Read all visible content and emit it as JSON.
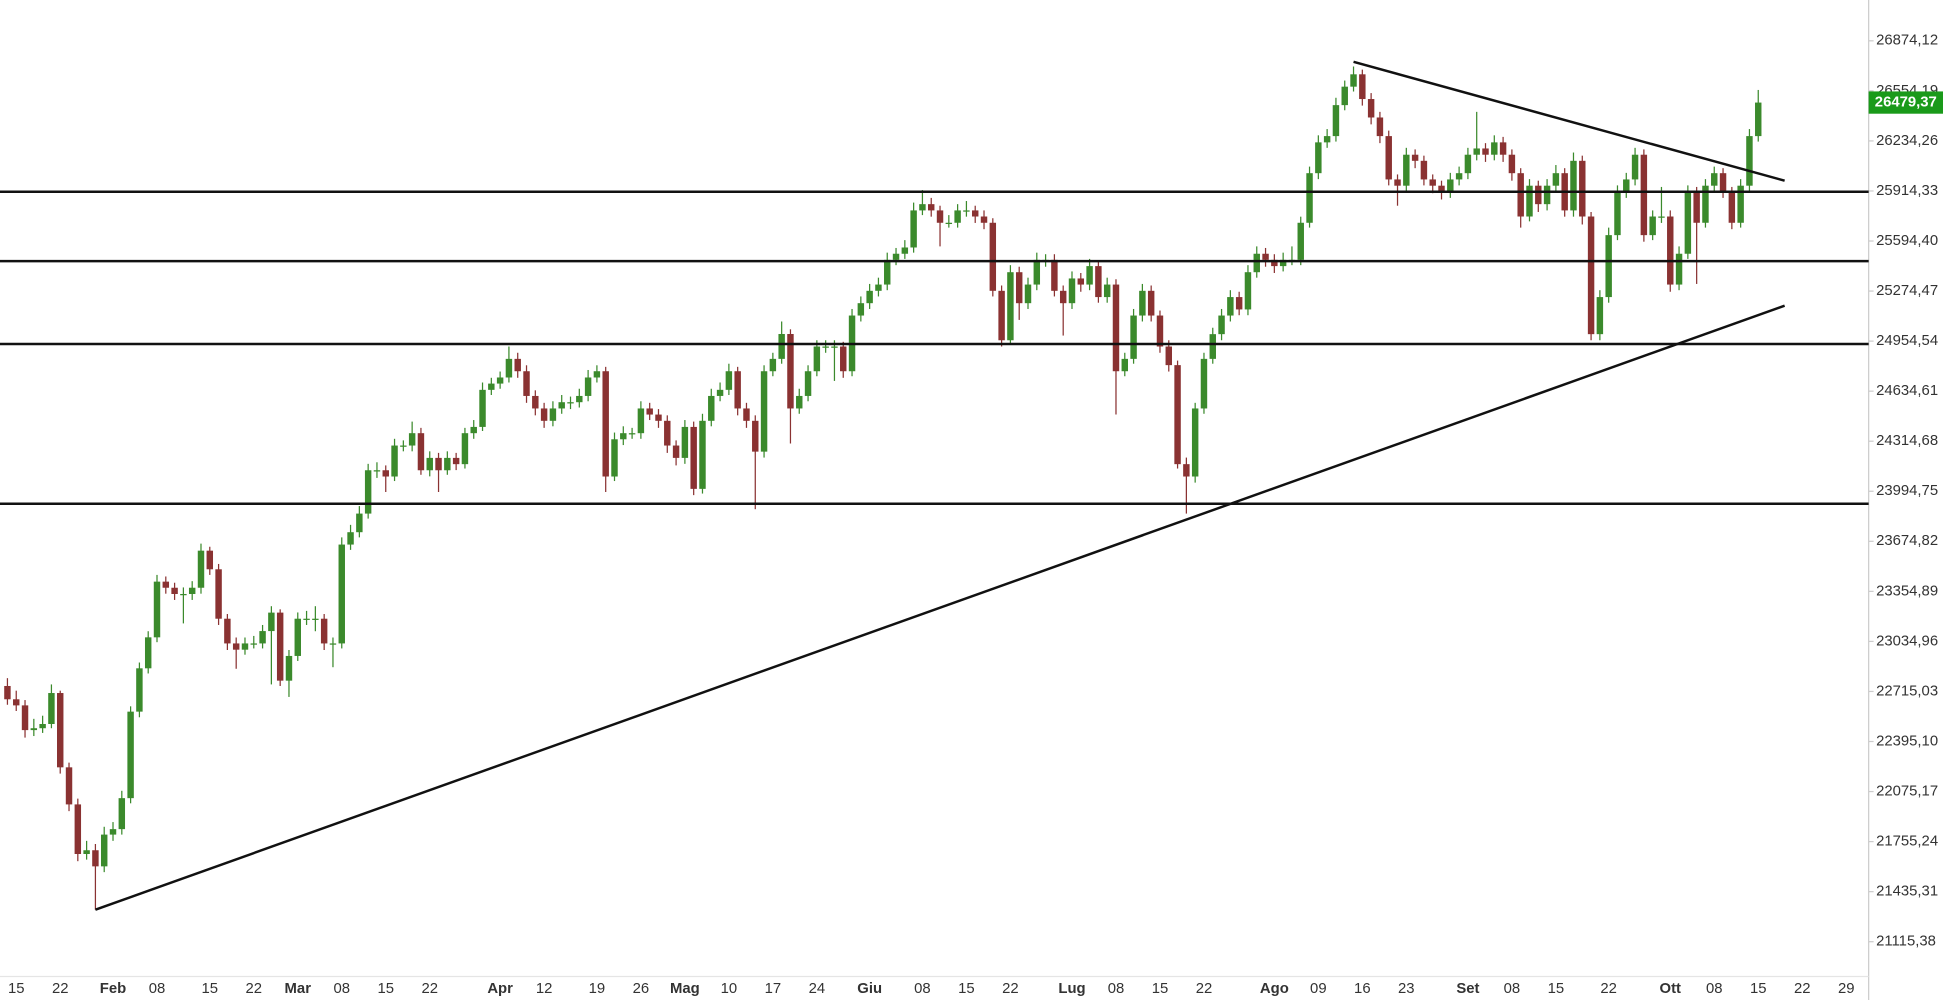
{
  "chart_data": {
    "type": "candlestick",
    "categories": [
      null,
      "15",
      null,
      null,
      null,
      null,
      "22",
      null,
      null,
      null,
      null,
      null,
      "Feb",
      null,
      null,
      null,
      null,
      "08",
      null,
      null,
      null,
      null,
      null,
      "15",
      null,
      null,
      null,
      null,
      "22",
      null,
      null,
      null,
      null,
      "Mar",
      null,
      null,
      null,
      null,
      "08",
      null,
      null,
      null,
      null,
      "15",
      null,
      null,
      null,
      null,
      "22",
      null,
      null,
      null,
      null,
      null,
      null,
      null,
      "Apr",
      null,
      null,
      null,
      null,
      "12",
      null,
      null,
      null,
      null,
      null,
      "19",
      null,
      null,
      null,
      null,
      "26",
      null,
      null,
      null,
      null,
      "Mag",
      null,
      null,
      null,
      null,
      "10",
      null,
      null,
      null,
      null,
      "17",
      null,
      null,
      null,
      null,
      "24",
      null,
      null,
      null,
      null,
      null,
      "Giu",
      null,
      null,
      null,
      null,
      null,
      "08",
      null,
      null,
      null,
      null,
      "15",
      null,
      null,
      null,
      null,
      "22",
      null,
      null,
      null,
      null,
      null,
      null,
      "Lug",
      null,
      null,
      null,
      null,
      "08",
      null,
      null,
      null,
      null,
      "15",
      null,
      null,
      null,
      null,
      "22",
      null,
      null,
      null,
      null,
      null,
      null,
      null,
      "Ago",
      null,
      null,
      null,
      null,
      "09",
      null,
      null,
      null,
      null,
      "16",
      null,
      null,
      null,
      null,
      "23",
      null,
      null,
      null,
      null,
      null,
      null,
      "Set",
      null,
      null,
      null,
      null,
      "08",
      null,
      null,
      null,
      null,
      "15",
      null,
      null,
      null,
      null,
      null,
      "22",
      null,
      null,
      null,
      null,
      null,
      null,
      "Ott",
      null,
      null,
      null,
      null,
      "08",
      null,
      null,
      null,
      null,
      "15",
      null,
      null,
      null,
      null,
      "22",
      null,
      null,
      null,
      null,
      "29"
    ],
    "values": [
      [
        22750,
        22800,
        22630,
        22665
      ],
      [
        22665,
        22720,
        22590,
        22626
      ],
      [
        22626,
        22660,
        22420,
        22468
      ],
      [
        22468,
        22540,
        22430,
        22480
      ],
      [
        22480,
        22560,
        22450,
        22507
      ],
      [
        22507,
        22760,
        22480,
        22705
      ],
      [
        22705,
        22720,
        22190,
        22230
      ],
      [
        22230,
        22260,
        21950,
        21993
      ],
      [
        21993,
        22030,
        21630,
        21676
      ],
      [
        21676,
        21760,
        21640,
        21700
      ],
      [
        21700,
        21740,
        21320,
        21597
      ],
      [
        21597,
        21850,
        21560,
        21800
      ],
      [
        21800,
        21880,
        21760,
        21835
      ],
      [
        21835,
        22080,
        21800,
        22033
      ],
      [
        22033,
        22620,
        22000,
        22586
      ],
      [
        22586,
        22900,
        22550,
        22863
      ],
      [
        22863,
        23100,
        22830,
        23061
      ],
      [
        23061,
        23460,
        23030,
        23417
      ],
      [
        23417,
        23450,
        23340,
        23378
      ],
      [
        23378,
        23410,
        23300,
        23338
      ],
      [
        23338,
        23380,
        23150,
        23338
      ],
      [
        23338,
        23420,
        23300,
        23378
      ],
      [
        23378,
        23660,
        23340,
        23615
      ],
      [
        23615,
        23640,
        23460,
        23496
      ],
      [
        23496,
        23530,
        23140,
        23180
      ],
      [
        23180,
        23210,
        22980,
        23022
      ],
      [
        23022,
        23060,
        22860,
        22982
      ],
      [
        22982,
        23060,
        22950,
        23022
      ],
      [
        23022,
        23070,
        22990,
        23022
      ],
      [
        23022,
        23140,
        22990,
        23101
      ],
      [
        23101,
        23260,
        22760,
        23219
      ],
      [
        23219,
        23240,
        22750,
        22784
      ],
      [
        22784,
        22980,
        22680,
        22942
      ],
      [
        22942,
        23220,
        22910,
        23180
      ],
      [
        23180,
        23230,
        23140,
        23180
      ],
      [
        23180,
        23260,
        23100,
        23180
      ],
      [
        23180,
        23210,
        22980,
        23022
      ],
      [
        23022,
        23060,
        22870,
        23022
      ],
      [
        23022,
        23700,
        22990,
        23654
      ],
      [
        23654,
        23780,
        23620,
        23733
      ],
      [
        23733,
        23900,
        23700,
        23852
      ],
      [
        23852,
        24170,
        23820,
        24129
      ],
      [
        24129,
        24180,
        24080,
        24129
      ],
      [
        24129,
        24160,
        23990,
        24089
      ],
      [
        24089,
        24330,
        24060,
        24287
      ],
      [
        24287,
        24320,
        24250,
        24287
      ],
      [
        24287,
        24440,
        24250,
        24366
      ],
      [
        24366,
        24400,
        24100,
        24129
      ],
      [
        24129,
        24250,
        24090,
        24208
      ],
      [
        24208,
        24240,
        23990,
        24129
      ],
      [
        24129,
        24250,
        24100,
        24208
      ],
      [
        24208,
        24240,
        24130,
        24168
      ],
      [
        24168,
        24400,
        24140,
        24366
      ],
      [
        24366,
        24450,
        24330,
        24406
      ],
      [
        24406,
        24690,
        24380,
        24643
      ],
      [
        24643,
        24720,
        24610,
        24683
      ],
      [
        24683,
        24760,
        24650,
        24722
      ],
      [
        24722,
        24920,
        24690,
        24841
      ],
      [
        24841,
        24880,
        24720,
        24762
      ],
      [
        24762,
        24800,
        24560,
        24604
      ],
      [
        24604,
        24640,
        24480,
        24524
      ],
      [
        24524,
        24560,
        24400,
        24445
      ],
      [
        24445,
        24570,
        24410,
        24524
      ],
      [
        24524,
        24610,
        24490,
        24564
      ],
      [
        24564,
        24600,
        24520,
        24564
      ],
      [
        24564,
        24650,
        24530,
        24604
      ],
      [
        24604,
        24770,
        24570,
        24722
      ],
      [
        24722,
        24800,
        24690,
        24762
      ],
      [
        24762,
        24790,
        23990,
        24089
      ],
      [
        24089,
        24370,
        24060,
        24327
      ],
      [
        24327,
        24410,
        24290,
        24366
      ],
      [
        24366,
        24400,
        24330,
        24366
      ],
      [
        24366,
        24570,
        24330,
        24524
      ],
      [
        24524,
        24560,
        24450,
        24485
      ],
      [
        24485,
        24520,
        24400,
        24445
      ],
      [
        24445,
        24480,
        24240,
        24287
      ],
      [
        24287,
        24320,
        24160,
        24208
      ],
      [
        24208,
        24450,
        24170,
        24406
      ],
      [
        24406,
        24440,
        23970,
        24010
      ],
      [
        24010,
        24490,
        23980,
        24445
      ],
      [
        24445,
        24650,
        24410,
        24604
      ],
      [
        24604,
        24690,
        24570,
        24643
      ],
      [
        24643,
        24810,
        24610,
        24762
      ],
      [
        24762,
        24790,
        24480,
        24524
      ],
      [
        24524,
        24560,
        24400,
        24445
      ],
      [
        24445,
        24480,
        23880,
        24248
      ],
      [
        24248,
        24800,
        24210,
        24762
      ],
      [
        24762,
        24880,
        24730,
        24841
      ],
      [
        24841,
        25080,
        24810,
        25000
      ],
      [
        25000,
        25030,
        24300,
        24524
      ],
      [
        24524,
        24650,
        24490,
        24604
      ],
      [
        24604,
        24800,
        24570,
        24762
      ],
      [
        24762,
        24960,
        24730,
        24920
      ],
      [
        24920,
        24960,
        24880,
        24920
      ],
      [
        24920,
        24960,
        24700,
        24920
      ],
      [
        24920,
        24950,
        24720,
        24762
      ],
      [
        24762,
        25160,
        24730,
        25118
      ],
      [
        25118,
        25240,
        25080,
        25197
      ],
      [
        25197,
        25320,
        25160,
        25276
      ],
      [
        25276,
        25360,
        25240,
        25316
      ],
      [
        25316,
        25520,
        25280,
        25474
      ],
      [
        25474,
        25550,
        25440,
        25513
      ],
      [
        25513,
        25600,
        25480,
        25553
      ],
      [
        25553,
        25840,
        25520,
        25790
      ],
      [
        25790,
        25920,
        25760,
        25830
      ],
      [
        25830,
        25870,
        25750,
        25790
      ],
      [
        25790,
        25820,
        25560,
        25711
      ],
      [
        25711,
        25760,
        25680,
        25711
      ],
      [
        25711,
        25830,
        25680,
        25790
      ],
      [
        25790,
        25850,
        25750,
        25790
      ],
      [
        25790,
        25820,
        25710,
        25751
      ],
      [
        25751,
        25790,
        25670,
        25711
      ],
      [
        25711,
        25740,
        25240,
        25276
      ],
      [
        25276,
        25310,
        24920,
        24960
      ],
      [
        24960,
        25440,
        24930,
        25395
      ],
      [
        25395,
        25430,
        25090,
        25197
      ],
      [
        25197,
        25360,
        25160,
        25316
      ],
      [
        25316,
        25520,
        25280,
        25474
      ],
      [
        25474,
        25510,
        25430,
        25474
      ],
      [
        25474,
        25510,
        25240,
        25276
      ],
      [
        25276,
        25310,
        24990,
        25197
      ],
      [
        25197,
        25400,
        25160,
        25355
      ],
      [
        25355,
        25390,
        25270,
        25316
      ],
      [
        25316,
        25480,
        25280,
        25434
      ],
      [
        25434,
        25460,
        25200,
        25236
      ],
      [
        25236,
        25360,
        25200,
        25316
      ],
      [
        25316,
        25350,
        24485,
        24762
      ],
      [
        24762,
        24880,
        24730,
        24841
      ],
      [
        24841,
        25160,
        24810,
        25118
      ],
      [
        25118,
        25320,
        25080,
        25276
      ],
      [
        25276,
        25310,
        25080,
        25118
      ],
      [
        25118,
        25150,
        24880,
        24920
      ],
      [
        24920,
        24960,
        24760,
        24801
      ],
      [
        24801,
        24830,
        24140,
        24168
      ],
      [
        24168,
        24210,
        23852,
        24089
      ],
      [
        24089,
        24560,
        24050,
        24524
      ],
      [
        24524,
        24880,
        24490,
        24841
      ],
      [
        24841,
        25040,
        24810,
        24999
      ],
      [
        24999,
        25160,
        24960,
        25118
      ],
      [
        25118,
        25280,
        25080,
        25236
      ],
      [
        25236,
        25270,
        25120,
        25157
      ],
      [
        25157,
        25440,
        25120,
        25395
      ],
      [
        25395,
        25560,
        25360,
        25513
      ],
      [
        25513,
        25550,
        25430,
        25474
      ],
      [
        25474,
        25510,
        25390,
        25434
      ],
      [
        25434,
        25520,
        25400,
        25474
      ],
      [
        25474,
        25560,
        25440,
        25474
      ],
      [
        25474,
        25750,
        25440,
        25711
      ],
      [
        25711,
        26070,
        25680,
        26028
      ],
      [
        26028,
        26270,
        25990,
        26225
      ],
      [
        26225,
        26310,
        26190,
        26265
      ],
      [
        26265,
        26510,
        26230,
        26463
      ],
      [
        26463,
        26620,
        26430,
        26581
      ],
      [
        26581,
        26710,
        26550,
        26660
      ],
      [
        26660,
        26690,
        26460,
        26502
      ],
      [
        26502,
        26540,
        26340,
        26384
      ],
      [
        26384,
        26420,
        26220,
        26265
      ],
      [
        26265,
        26300,
        25950,
        25988
      ],
      [
        25988,
        26020,
        25820,
        25948
      ],
      [
        25948,
        26190,
        25910,
        26146
      ],
      [
        26146,
        26180,
        26060,
        26107
      ],
      [
        26107,
        26140,
        25950,
        25988
      ],
      [
        25988,
        26020,
        25900,
        25948
      ],
      [
        25948,
        25980,
        25860,
        25909
      ],
      [
        25909,
        26030,
        25870,
        25988
      ],
      [
        25988,
        26070,
        25950,
        26028
      ],
      [
        26028,
        26190,
        25990,
        26146
      ],
      [
        26146,
        26420,
        26110,
        26186
      ],
      [
        26186,
        26220,
        26100,
        26146
      ],
      [
        26146,
        26270,
        26110,
        26225
      ],
      [
        26225,
        26260,
        26100,
        26146
      ],
      [
        26146,
        26180,
        25980,
        26028
      ],
      [
        26028,
        26060,
        25680,
        25751
      ],
      [
        25751,
        25990,
        25720,
        25948
      ],
      [
        25948,
        25980,
        25780,
        25830
      ],
      [
        25830,
        25990,
        25790,
        25948
      ],
      [
        25948,
        26080,
        25910,
        26028
      ],
      [
        26028,
        26060,
        25750,
        25790
      ],
      [
        25790,
        26160,
        25750,
        26107
      ],
      [
        26107,
        26140,
        25700,
        25751
      ],
      [
        25751,
        25780,
        24960,
        24999
      ],
      [
        24999,
        25280,
        24960,
        25236
      ],
      [
        25236,
        25680,
        25200,
        25632
      ],
      [
        25632,
        25950,
        25600,
        25909
      ],
      [
        25909,
        26030,
        25870,
        25988
      ],
      [
        25988,
        26190,
        25950,
        26146
      ],
      [
        26146,
        26180,
        25590,
        25632
      ],
      [
        25632,
        25790,
        25600,
        25751
      ],
      [
        25751,
        25940,
        25710,
        25751
      ],
      [
        25751,
        25790,
        25270,
        25316
      ],
      [
        25316,
        25560,
        25280,
        25513
      ],
      [
        25513,
        25950,
        25480,
        25909
      ],
      [
        25909,
        25940,
        25320,
        25711
      ],
      [
        25711,
        25990,
        25680,
        25948
      ],
      [
        25948,
        26070,
        25910,
        26028
      ],
      [
        26028,
        26060,
        25870,
        25909
      ],
      [
        25909,
        25940,
        25670,
        25711
      ],
      [
        25711,
        25990,
        25680,
        25948
      ],
      [
        25948,
        26310,
        25910,
        26265
      ],
      [
        26265,
        26560,
        26230,
        26479.37
      ],
      null,
      null,
      null,
      null,
      null,
      null,
      null,
      null,
      null,
      null
    ],
    "up_color": "#3b8a2c",
    "down_color": "#8a3232",
    "ylim": [
      20806,
      27135
    ],
    "yticks": [
      {
        "value": 21115.38,
        "label": "21115,38"
      },
      {
        "value": 21435.31,
        "label": "21435,31"
      },
      {
        "value": 21755.24,
        "label": "21755,24"
      },
      {
        "value": 22075.17,
        "label": "22075,17"
      },
      {
        "value": 22395.1,
        "label": "22395,10"
      },
      {
        "value": 22715.03,
        "label": "22715,03"
      },
      {
        "value": 23034.96,
        "label": "23034,96"
      },
      {
        "value": 23354.89,
        "label": "23354,89"
      },
      {
        "value": 23674.82,
        "label": "23674,82"
      },
      {
        "value": 23994.75,
        "label": "23994,75"
      },
      {
        "value": 24314.68,
        "label": "24314,68"
      },
      {
        "value": 24634.61,
        "label": "24634,61"
      },
      {
        "value": 24954.54,
        "label": "24954,54"
      },
      {
        "value": 25274.47,
        "label": "25274,47"
      },
      {
        "value": 25594.4,
        "label": "25594,40"
      },
      {
        "value": 25914.33,
        "label": "25914,33"
      },
      {
        "value": 26234.26,
        "label": "26234,26"
      },
      {
        "value": 26554.19,
        "label": "26554,19"
      },
      {
        "value": 26874.12,
        "label": "26874,12"
      }
    ],
    "last_price": {
      "value": 26479.37,
      "label": "26479,37",
      "color": "#1a9a1a"
    },
    "hlines": [
      25909,
      25466,
      24936,
      23915
    ],
    "trendlines": [
      {
        "x": [
          10,
          202
        ],
        "y": [
          21320,
          25181
        ]
      },
      {
        "x": [
          153,
          202
        ],
        "y": [
          26740,
          25980
        ]
      }
    ]
  }
}
